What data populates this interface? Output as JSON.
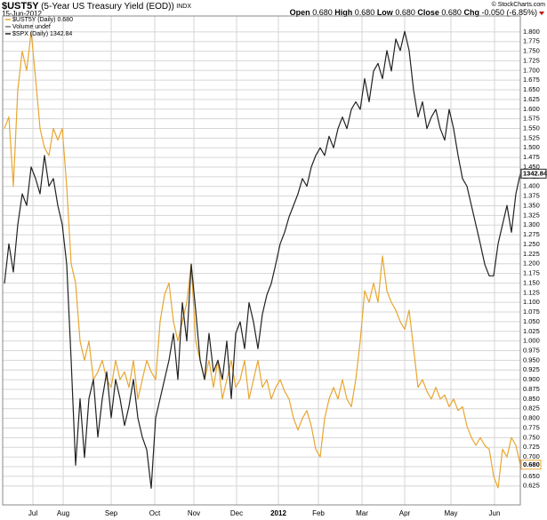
{
  "chart_data": {
    "type": "line",
    "header": {
      "symbol": "$UST5Y",
      "description": "(5-Year US Treasury Yield (EOD))",
      "exchange": "INDX",
      "date": "15-Jun-2012",
      "open_label": "Open",
      "open": "0.680",
      "high_label": "High",
      "high": "0.680",
      "low_label": "Low",
      "low": "0.680",
      "close_label": "Close",
      "close": "0.680",
      "chg_label": "Chg",
      "chg": "-0.050 (-6.85%)",
      "credit": "© StockCharts.com"
    },
    "legend_extra": "Volume undef",
    "grid": true,
    "xlim": [
      0,
      116
    ],
    "xticks": [
      {
        "value": 6.4,
        "label": "Jul"
      },
      {
        "value": 13.2,
        "label": "Aug"
      },
      {
        "value": 24,
        "label": "Sep"
      },
      {
        "value": 33.8,
        "label": "Oct"
      },
      {
        "value": 42.6,
        "label": "Nov"
      },
      {
        "value": 52.2,
        "label": "Dec"
      },
      {
        "value": 61.6,
        "label": "2012"
      },
      {
        "value": 70.6,
        "label": "Feb"
      },
      {
        "value": 80.4,
        "label": "Mar"
      },
      {
        "value": 90,
        "label": "Apr"
      },
      {
        "value": 100.4,
        "label": "May"
      },
      {
        "value": 110.2,
        "label": "Jun"
      }
    ],
    "ylim": [
      0.576,
      1.841
    ],
    "yticks": [
      0.625,
      {
        "value": 0.65,
        "label": "0.650"
      },
      0.675,
      {
        "value": 0.7,
        "label": "0.700"
      },
      0.725,
      {
        "value": 0.75,
        "label": "0.750"
      },
      0.775,
      {
        "value": 0.8,
        "label": "0.800"
      },
      0.825,
      {
        "value": 0.85,
        "label": "0.850"
      },
      0.875,
      {
        "value": 0.9,
        "label": "0.900"
      },
      0.925,
      {
        "value": 0.95,
        "label": "0.950"
      },
      0.975,
      {
        "value": 1,
        "label": "1.000"
      },
      1.025,
      {
        "value": 1.05,
        "label": "1.050"
      },
      1.075,
      {
        "value": 1.1,
        "label": "1.100"
      },
      1.125,
      {
        "value": 1.15,
        "label": "1.150"
      },
      1.175,
      {
        "value": 1.2,
        "label": "1.200"
      },
      1.225,
      {
        "value": 1.25,
        "label": "1.250"
      },
      1.275,
      {
        "value": 1.3,
        "label": "1.300"
      },
      1.325,
      {
        "value": 1.35,
        "label": "1.350"
      },
      1.375,
      {
        "value": 1.4,
        "label": "1.400"
      },
      1.425,
      {
        "value": 1.45,
        "label": "1.450"
      },
      1.475,
      {
        "value": 1.5,
        "label": "1.500"
      },
      1.525,
      {
        "value": 1.55,
        "label": "1.550"
      },
      1.575,
      {
        "value": 1.6,
        "label": "1.600"
      },
      1.625,
      {
        "value": 1.65,
        "label": "1.650"
      },
      1.675,
      {
        "value": 1.7,
        "label": "1.700"
      },
      1.725,
      {
        "value": 1.75,
        "label": "1.750"
      },
      1.775,
      {
        "value": 1.8,
        "label": "1.800"
      }
    ],
    "y2lim": [
      1084,
      1466
    ],
    "series": [
      {
        "name": "$UST5Y (Daily) 0.680",
        "color": "#e8a630",
        "values": [
          1.55,
          1.58,
          1.4,
          1.65,
          1.75,
          1.7,
          1.8,
          1.68,
          1.55,
          1.5,
          1.48,
          1.55,
          1.52,
          1.55,
          1.4,
          1.2,
          1.15,
          1.0,
          0.95,
          1.0,
          0.9,
          0.92,
          0.95,
          0.9,
          0.88,
          0.95,
          0.9,
          0.92,
          0.88,
          0.95,
          0.85,
          0.9,
          0.95,
          0.92,
          0.9,
          1.05,
          1.12,
          1.15,
          1.05,
          1.0,
          1.05,
          1.1,
          1.2,
          1.0,
          0.95,
          0.9,
          0.95,
          0.88,
          0.95,
          0.85,
          0.9,
          0.95,
          0.88,
          0.9,
          0.95,
          0.85,
          0.9,
          0.95,
          0.88,
          0.9,
          0.85,
          0.88,
          0.9,
          0.87,
          0.85,
          0.8,
          0.77,
          0.8,
          0.82,
          0.78,
          0.72,
          0.7,
          0.8,
          0.85,
          0.88,
          0.85,
          0.9,
          0.85,
          0.83,
          0.9,
          1.0,
          1.13,
          1.1,
          1.15,
          1.1,
          1.22,
          1.13,
          1.1,
          1.08,
          1.05,
          1.03,
          1.08,
          0.98,
          0.88,
          0.9,
          0.87,
          0.85,
          0.88,
          0.85,
          0.86,
          0.83,
          0.85,
          0.82,
          0.83,
          0.78,
          0.75,
          0.73,
          0.75,
          0.73,
          0.72,
          0.65,
          0.62,
          0.72,
          0.7,
          0.75,
          0.73,
          0.68
        ]
      },
      {
        "name": "$SPX (Daily) 1342.84",
        "color": "#222222",
        "axis": "y2",
        "values": [
          1257,
          1288,
          1266,
          1303,
          1327,
          1318,
          1348,
          1339,
          1327,
          1357,
          1333,
          1339,
          1318,
          1303,
          1272,
          1197,
          1115,
          1167,
          1121,
          1167,
          1182,
          1137,
          1167,
          1188,
          1152,
          1182,
          1167,
          1146,
          1161,
          1182,
          1152,
          1137,
          1127,
          1097,
          1152,
          1167,
          1182,
          1197,
          1218,
          1182,
          1242,
          1212,
          1272,
          1236,
          1197,
          1182,
          1218,
          1188,
          1197,
          1182,
          1212,
          1167,
          1218,
          1227,
          1206,
          1242,
          1227,
          1206,
          1233,
          1248,
          1257,
          1272,
          1288,
          1297,
          1309,
          1318,
          1327,
          1339,
          1333,
          1348,
          1357,
          1363,
          1357,
          1372,
          1363,
          1378,
          1387,
          1378,
          1393,
          1399,
          1393,
          1417,
          1399,
          1423,
          1429,
          1417,
          1439,
          1423,
          1448,
          1439,
          1454,
          1439,
          1408,
          1387,
          1399,
          1378,
          1387,
          1393,
          1378,
          1369,
          1393,
          1378,
          1357,
          1339,
          1333,
          1318,
          1303,
          1288,
          1272,
          1263,
          1263,
          1288,
          1303,
          1318,
          1297,
          1327,
          1342.84
        ]
      }
    ]
  }
}
